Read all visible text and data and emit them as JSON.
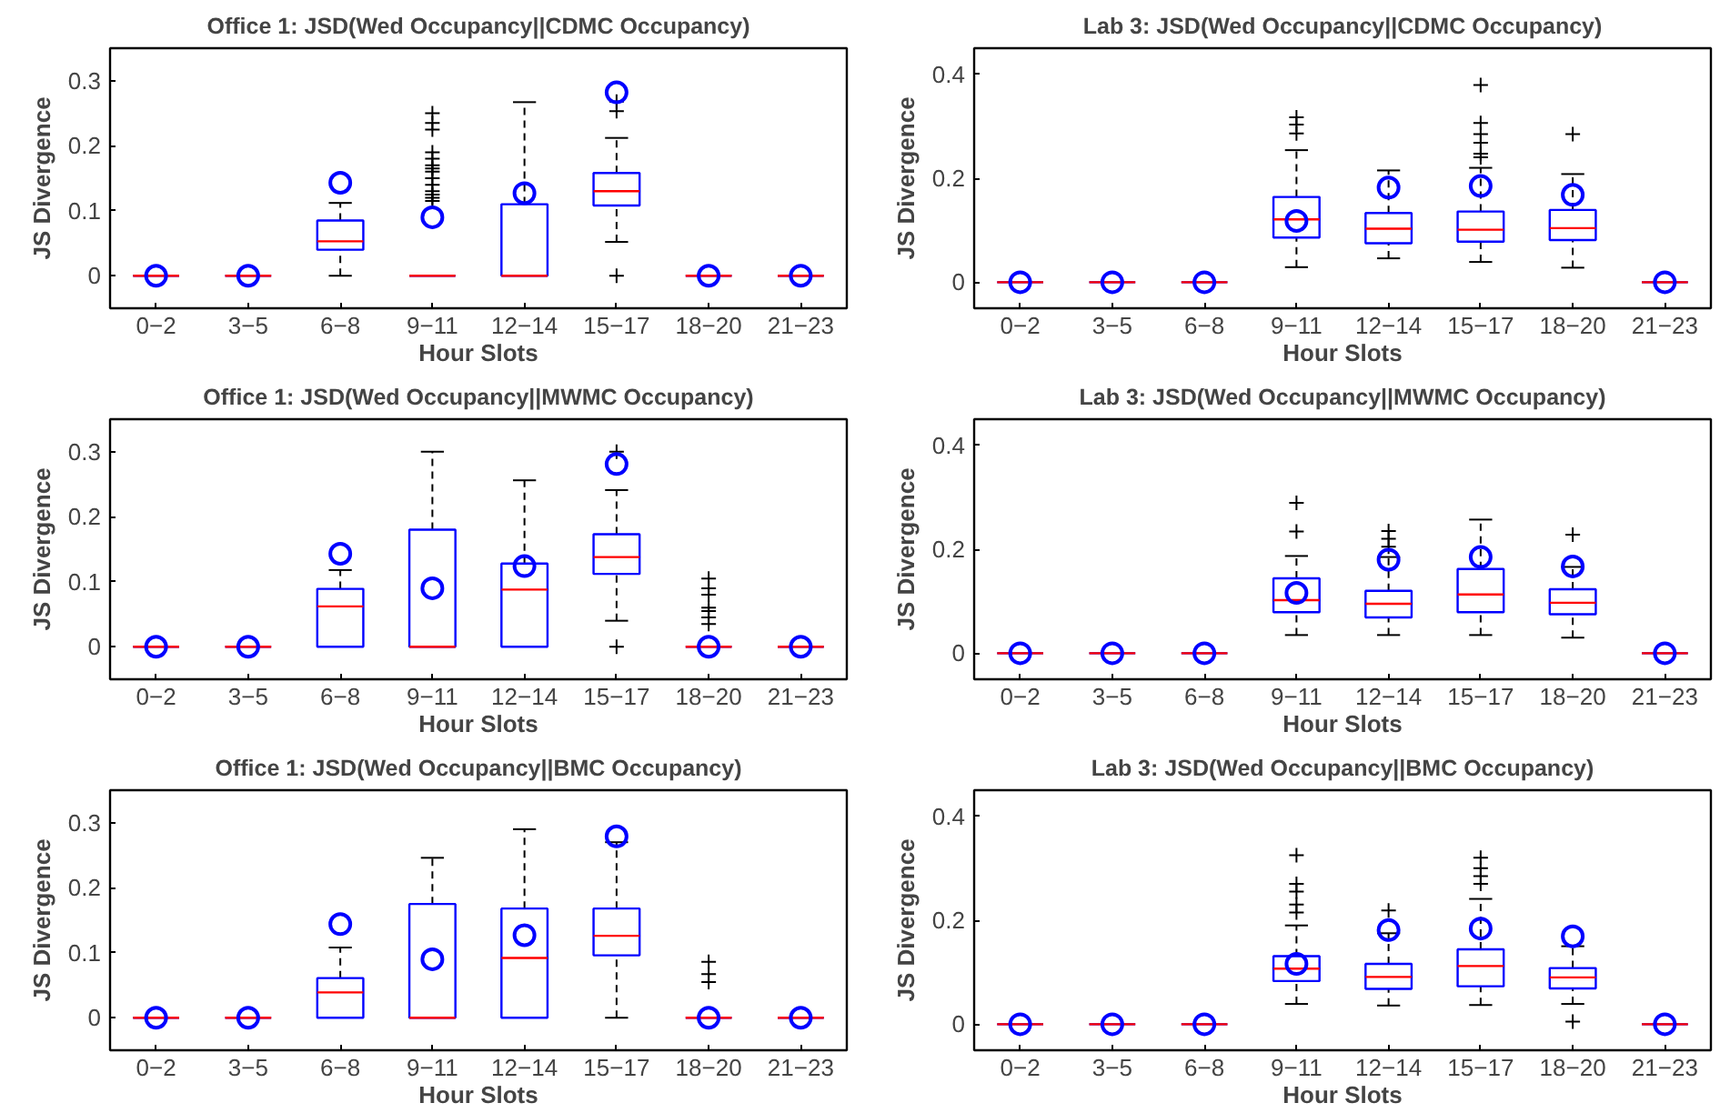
{
  "chart_data": [
    {
      "type": "box",
      "title": "Office 1: JSD(Wed Occupancy||CDMC Occupancy)",
      "xlabel": "Hour Slots",
      "ylabel": "JS Divergence",
      "categories": [
        "0−2",
        "3−5",
        "6−8",
        "9−11",
        "12−14",
        "15−17",
        "18−20",
        "21−23"
      ],
      "ylim": [
        -0.05,
        0.35
      ],
      "yticks": [
        0,
        0.1,
        0.2,
        0.3
      ],
      "grid": false,
      "series": [
        {
          "type": "box",
          "color": "#0000ff",
          "boxes": [
            {
              "low": 0,
              "q1": 0,
              "median": 0,
              "q3": 0,
              "high": 0
            },
            {
              "low": 0,
              "q1": 0,
              "median": 0,
              "q3": 0,
              "high": 0
            },
            {
              "low": 0,
              "q1": 0.04,
              "median": 0.053,
              "q3": 0.085,
              "high": 0.112
            },
            {
              "low": 0,
              "q1": 0,
              "median": 0,
              "q3": 0,
              "high": 0,
              "outliers": [
                0.115,
                0.12,
                0.125,
                0.13,
                0.14,
                0.15,
                0.16,
                0.165,
                0.17,
                0.18,
                0.19,
                0.225,
                0.235,
                0.25
              ]
            },
            {
              "low": 0,
              "q1": 0,
              "median": 0,
              "q3": 0.11,
              "high": 0.267
            },
            {
              "low": 0.052,
              "q1": 0.108,
              "median": 0.13,
              "q3": 0.158,
              "high": 0.212,
              "outliers": [
                0,
                0.253,
                0.268
              ]
            },
            {
              "low": 0,
              "q1": 0,
              "median": 0,
              "q3": 0,
              "high": 0
            },
            {
              "low": 0,
              "q1": 0,
              "median": 0,
              "q3": 0,
              "high": 0
            }
          ]
        },
        {
          "type": "scatter",
          "color": "#0000ff",
          "marker": "circle",
          "x": [
            "0−2",
            "3−5",
            "6−8",
            "9−11",
            "12−14",
            "15−17",
            "18−20",
            "21−23"
          ],
          "values": [
            0,
            0,
            0.143,
            0.09,
            0.127,
            0.282,
            0,
            0
          ]
        }
      ]
    },
    {
      "type": "box",
      "title": "Lab 3: JSD(Wed Occupancy||CDMC Occupancy)",
      "xlabel": "Hour Slots",
      "ylabel": "JS Divergence",
      "categories": [
        "0−2",
        "3−5",
        "6−8",
        "9−11",
        "12−14",
        "15−17",
        "18−20",
        "21−23"
      ],
      "ylim": [
        -0.05,
        0.45
      ],
      "yticks": [
        0,
        0.2,
        0.4
      ],
      "grid": false,
      "series": [
        {
          "type": "box",
          "color": "#0000ff",
          "boxes": [
            {
              "low": 0,
              "q1": 0,
              "median": 0,
              "q3": 0,
              "high": 0
            },
            {
              "low": 0,
              "q1": 0,
              "median": 0,
              "q3": 0,
              "high": 0
            },
            {
              "low": 0,
              "q1": 0,
              "median": 0,
              "q3": 0,
              "high": 0
            },
            {
              "low": 0.029,
              "q1": 0.086,
              "median": 0.121,
              "q3": 0.164,
              "high": 0.254,
              "outliers": [
                0.286,
                0.303,
                0.317
              ]
            },
            {
              "low": 0.046,
              "q1": 0.075,
              "median": 0.103,
              "q3": 0.133,
              "high": 0.215
            },
            {
              "low": 0.039,
              "q1": 0.078,
              "median": 0.101,
              "q3": 0.136,
              "high": 0.22,
              "outliers": [
                0.24,
                0.247,
                0.268,
                0.285,
                0.306,
                0.379
              ]
            },
            {
              "low": 0.028,
              "q1": 0.081,
              "median": 0.104,
              "q3": 0.139,
              "high": 0.208,
              "outliers": [
                0.285
              ]
            },
            {
              "low": 0,
              "q1": 0,
              "median": 0,
              "q3": 0,
              "high": 0
            }
          ]
        },
        {
          "type": "scatter",
          "color": "#0000ff",
          "marker": "circle",
          "x": [
            "0−2",
            "3−5",
            "6−8",
            "9−11",
            "12−14",
            "15−17",
            "18−20",
            "21−23"
          ],
          "values": [
            0,
            0,
            0,
            0.118,
            0.182,
            0.185,
            0.168,
            0
          ]
        }
      ]
    },
    {
      "type": "box",
      "title": "Office 1: JSD(Wed Occupancy||MWMC Occupancy)",
      "xlabel": "Hour Slots",
      "ylabel": "JS Divergence",
      "categories": [
        "0−2",
        "3−5",
        "6−8",
        "9−11",
        "12−14",
        "15−17",
        "18−20",
        "21−23"
      ],
      "ylim": [
        -0.05,
        0.35
      ],
      "yticks": [
        0,
        0.1,
        0.2,
        0.3
      ],
      "grid": false,
      "series": [
        {
          "type": "box",
          "color": "#0000ff",
          "boxes": [
            {
              "low": 0,
              "q1": 0,
              "median": 0,
              "q3": 0,
              "high": 0
            },
            {
              "low": 0,
              "q1": 0,
              "median": 0,
              "q3": 0,
              "high": 0
            },
            {
              "low": 0,
              "q1": 0,
              "median": 0.062,
              "q3": 0.089,
              "high": 0.118
            },
            {
              "low": 0,
              "q1": 0,
              "median": 0,
              "q3": 0.18,
              "high": 0.3
            },
            {
              "low": 0,
              "q1": 0,
              "median": 0.088,
              "q3": 0.128,
              "high": 0.256
            },
            {
              "low": 0.04,
              "q1": 0.112,
              "median": 0.138,
              "q3": 0.173,
              "high": 0.241,
              "outliers": [
                0,
                0.3
              ]
            },
            {
              "low": 0,
              "q1": 0,
              "median": 0,
              "q3": 0,
              "high": 0,
              "outliers": [
                0.035,
                0.045,
                0.055,
                0.06,
                0.08,
                0.09,
                0.105
              ]
            },
            {
              "low": 0,
              "q1": 0,
              "median": 0,
              "q3": 0,
              "high": 0
            }
          ]
        },
        {
          "type": "scatter",
          "color": "#0000ff",
          "marker": "circle",
          "x": [
            "0−2",
            "3−5",
            "6−8",
            "9−11",
            "12−14",
            "15−17",
            "18−20",
            "21−23"
          ],
          "values": [
            0,
            0,
            0.143,
            0.09,
            0.124,
            0.281,
            0,
            0
          ]
        }
      ]
    },
    {
      "type": "box",
      "title": "Lab 3: JSD(Wed Occupancy||MWMC Occupancy)",
      "xlabel": "Hour Slots",
      "ylabel": "JS Divergence",
      "categories": [
        "0−2",
        "3−5",
        "6−8",
        "9−11",
        "12−14",
        "15−17",
        "18−20",
        "21−23"
      ],
      "ylim": [
        -0.05,
        0.45
      ],
      "yticks": [
        0,
        0.2,
        0.4
      ],
      "grid": false,
      "series": [
        {
          "type": "box",
          "color": "#0000ff",
          "boxes": [
            {
              "low": 0,
              "q1": 0,
              "median": 0,
              "q3": 0,
              "high": 0
            },
            {
              "low": 0,
              "q1": 0,
              "median": 0,
              "q3": 0,
              "high": 0
            },
            {
              "low": 0,
              "q1": 0,
              "median": 0,
              "q3": 0,
              "high": 0
            },
            {
              "low": 0.035,
              "q1": 0.079,
              "median": 0.102,
              "q3": 0.144,
              "high": 0.187,
              "outliers": [
                0.234,
                0.289
              ]
            },
            {
              "low": 0.035,
              "q1": 0.069,
              "median": 0.095,
              "q3": 0.12,
              "high": 0.185,
              "outliers": [
                0.205,
                0.22,
                0.235
              ]
            },
            {
              "low": 0.035,
              "q1": 0.079,
              "median": 0.113,
              "q3": 0.162,
              "high": 0.257
            },
            {
              "low": 0.03,
              "q1": 0.075,
              "median": 0.097,
              "q3": 0.123,
              "high": 0.166,
              "outliers": [
                0.228
              ]
            },
            {
              "low": 0,
              "q1": 0,
              "median": 0,
              "q3": 0,
              "high": 0
            }
          ]
        },
        {
          "type": "scatter",
          "color": "#0000ff",
          "marker": "circle",
          "x": [
            "0−2",
            "3−5",
            "6−8",
            "9−11",
            "12−14",
            "15−17",
            "18−20",
            "21−23"
          ],
          "values": [
            0,
            0,
            0,
            0.116,
            0.18,
            0.185,
            0.167,
            0
          ]
        }
      ]
    },
    {
      "type": "box",
      "title": "Office 1: JSD(Wed Occupancy||BMC Occupancy)",
      "xlabel": "Hour Slots",
      "ylabel": "JS Divergence",
      "categories": [
        "0−2",
        "3−5",
        "6−8",
        "9−11",
        "12−14",
        "15−17",
        "18−20",
        "21−23"
      ],
      "ylim": [
        -0.05,
        0.35
      ],
      "yticks": [
        0,
        0.1,
        0.2,
        0.3
      ],
      "grid": false,
      "series": [
        {
          "type": "box",
          "color": "#0000ff",
          "boxes": [
            {
              "low": 0,
              "q1": 0,
              "median": 0,
              "q3": 0,
              "high": 0
            },
            {
              "low": 0,
              "q1": 0,
              "median": 0,
              "q3": 0,
              "high": 0
            },
            {
              "low": 0,
              "q1": 0,
              "median": 0.039,
              "q3": 0.061,
              "high": 0.108
            },
            {
              "low": 0,
              "q1": 0,
              "median": 0,
              "q3": 0.175,
              "high": 0.246
            },
            {
              "low": 0,
              "q1": 0,
              "median": 0.092,
              "q3": 0.168,
              "high": 0.29
            },
            {
              "low": 0,
              "q1": 0.096,
              "median": 0.126,
              "q3": 0.168,
              "high": 0.27
            },
            {
              "low": 0,
              "q1": 0,
              "median": 0,
              "q3": 0,
              "high": 0,
              "outliers": [
                0.055,
                0.067,
                0.086
              ]
            },
            {
              "low": 0,
              "q1": 0,
              "median": 0,
              "q3": 0,
              "high": 0
            }
          ]
        },
        {
          "type": "scatter",
          "color": "#0000ff",
          "marker": "circle",
          "x": [
            "0−2",
            "3−5",
            "6−8",
            "9−11",
            "12−14",
            "15−17",
            "18−20",
            "21−23"
          ],
          "values": [
            0,
            0,
            0.144,
            0.09,
            0.127,
            0.279,
            0,
            0
          ]
        }
      ]
    },
    {
      "type": "box",
      "title": "Lab 3: JSD(Wed Occupancy||BMC Occupancy)",
      "xlabel": "Hour Slots",
      "ylabel": "JS Divergence",
      "categories": [
        "0−2",
        "3−5",
        "6−8",
        "9−11",
        "12−14",
        "15−17",
        "18−20",
        "21−23"
      ],
      "ylim": [
        -0.05,
        0.45
      ],
      "yticks": [
        0,
        0.2,
        0.4
      ],
      "grid": false,
      "series": [
        {
          "type": "box",
          "color": "#0000ff",
          "boxes": [
            {
              "low": 0,
              "q1": 0,
              "median": 0,
              "q3": 0,
              "high": 0
            },
            {
              "low": 0,
              "q1": 0,
              "median": 0,
              "q3": 0,
              "high": 0
            },
            {
              "low": 0,
              "q1": 0,
              "median": 0,
              "q3": 0,
              "high": 0
            },
            {
              "low": 0.039,
              "q1": 0.083,
              "median": 0.107,
              "q3": 0.131,
              "high": 0.19,
              "outliers": [
                0.215,
                0.23,
                0.255,
                0.27,
                0.325
              ]
            },
            {
              "low": 0.036,
              "q1": 0.068,
              "median": 0.091,
              "q3": 0.116,
              "high": 0.175,
              "outliers": [
                0.219
              ]
            },
            {
              "low": 0.037,
              "q1": 0.073,
              "median": 0.112,
              "q3": 0.144,
              "high": 0.241,
              "outliers": [
                0.27,
                0.285,
                0.3,
                0.32
              ]
            },
            {
              "low": 0.039,
              "q1": 0.069,
              "median": 0.09,
              "q3": 0.108,
              "high": 0.15,
              "outliers": [
                0.005
              ]
            },
            {
              "low": 0,
              "q1": 0,
              "median": 0,
              "q3": 0,
              "high": 0
            }
          ]
        },
        {
          "type": "scatter",
          "color": "#0000ff",
          "marker": "circle",
          "x": [
            "0−2",
            "3−5",
            "6−8",
            "9−11",
            "12−14",
            "15−17",
            "18−20",
            "21−23"
          ],
          "values": [
            0,
            0,
            0,
            0.116,
            0.181,
            0.184,
            0.169,
            0
          ]
        }
      ]
    }
  ]
}
